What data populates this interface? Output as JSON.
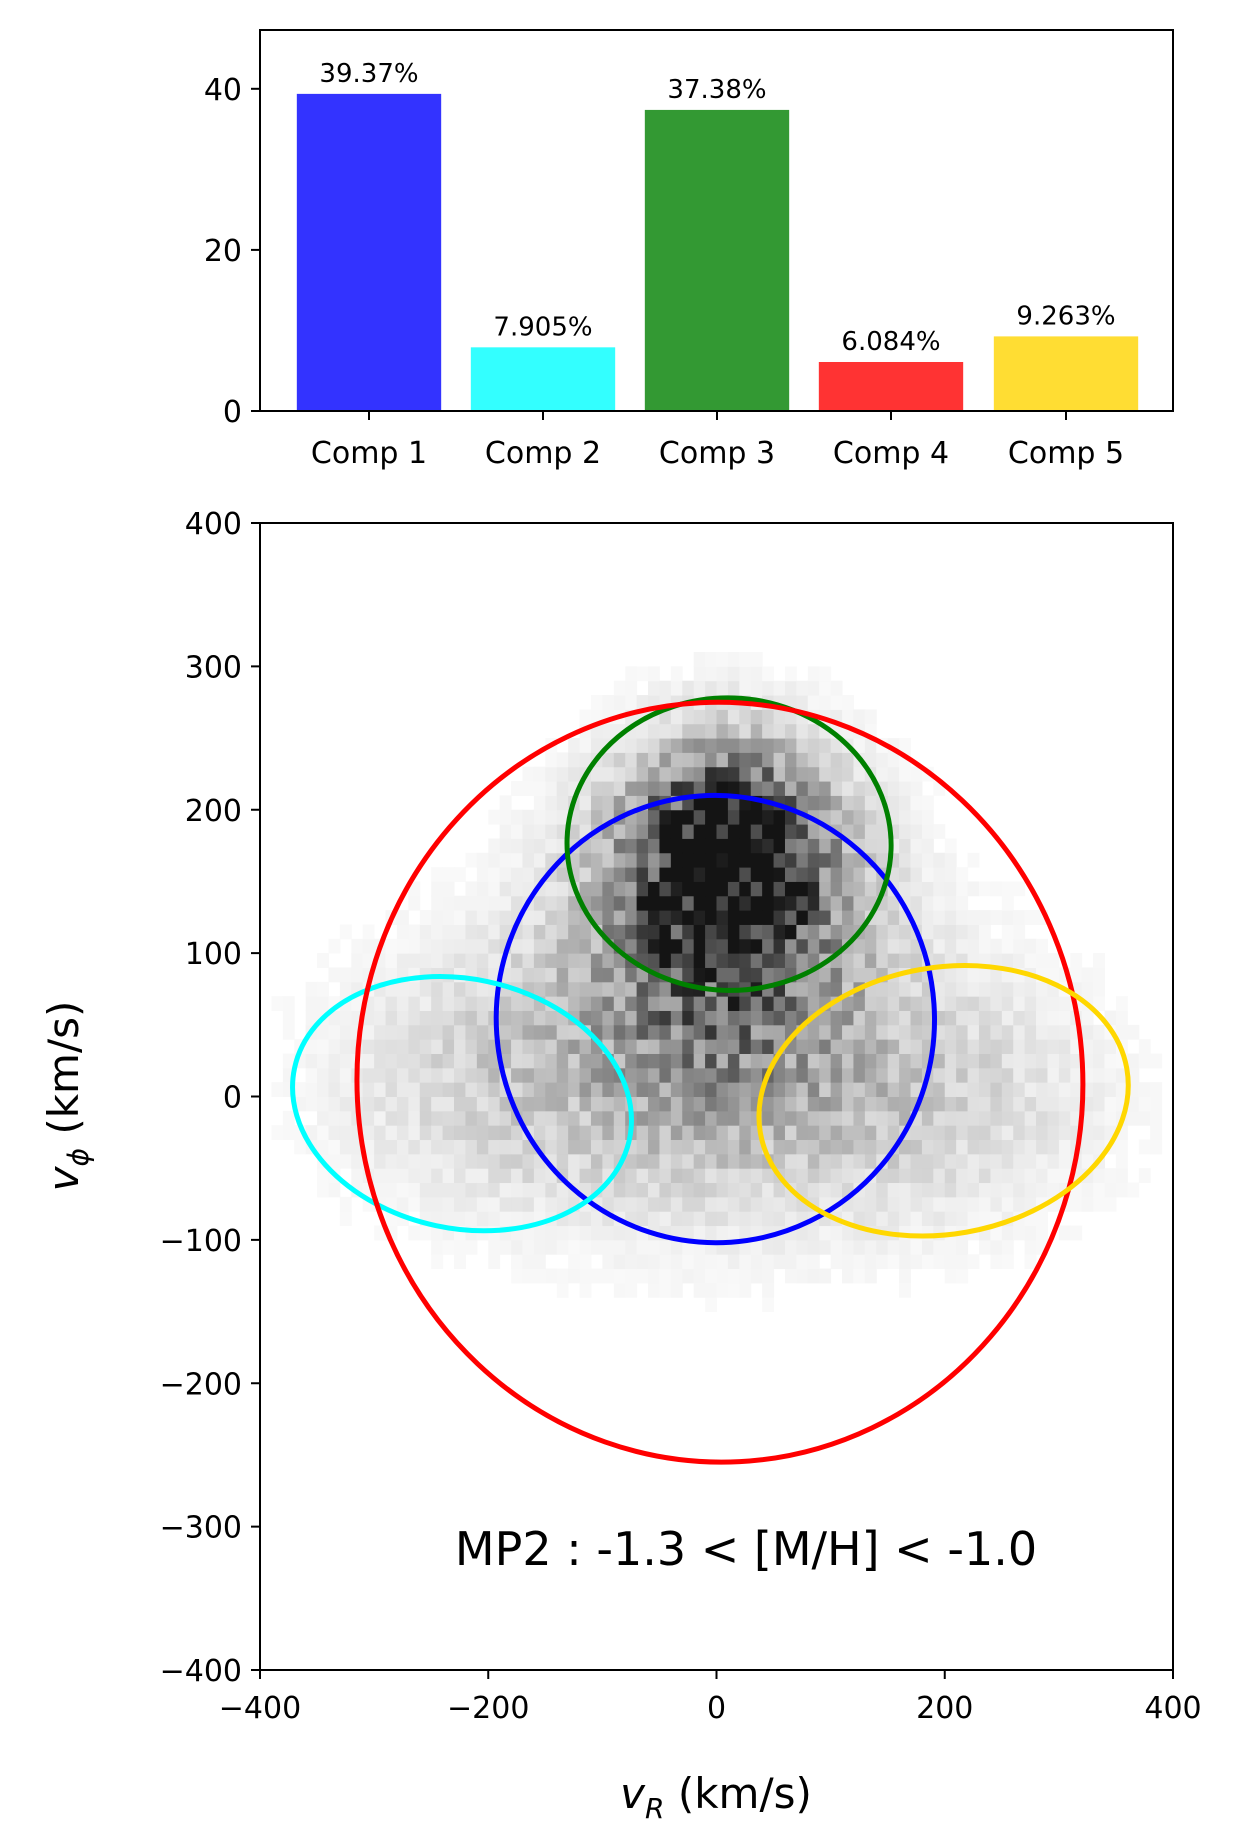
{
  "chart_data": [
    {
      "type": "bar",
      "categories": [
        "Comp 1",
        "Comp 2",
        "Comp 3",
        "Comp 4",
        "Comp 5"
      ],
      "values": [
        39.37,
        7.905,
        37.38,
        6.084,
        9.263
      ],
      "value_labels": [
        "39.37%",
        "7.905%",
        "37.38%",
        "6.084%",
        "9.263%"
      ],
      "colors": [
        "#3333ff",
        "#33ffff",
        "#339933",
        "#ff3333",
        "#ffdd33"
      ],
      "ylim": [
        0,
        47.3
      ],
      "yticks": [
        0,
        20,
        40
      ],
      "ytick_labels": [
        "0",
        "20",
        "40"
      ],
      "title": "",
      "xlabel": "",
      "ylabel": ""
    },
    {
      "type": "scatter",
      "subtype": "2d-histogram with gaussian-component ellipses",
      "xlabel": "v_R (km/s)",
      "ylabel": "v_ϕ (km/s)",
      "xlim": [
        -400,
        400
      ],
      "ylim": [
        -400,
        400
      ],
      "xticks": [
        -400,
        -200,
        0,
        200,
        400
      ],
      "xtick_labels": [
        "−400",
        "−200",
        "0",
        "200",
        "400"
      ],
      "yticks": [
        -400,
        -300,
        -200,
        -100,
        0,
        100,
        200,
        300,
        400
      ],
      "ytick_labels": [
        "−400",
        "−300",
        "−200",
        "−100",
        "0",
        "100",
        "200",
        "300",
        "400"
      ],
      "annotation": "MP2 : -1.3 < [M/H] < -1.0",
      "colormap": "greys",
      "ellipses": [
        {
          "component": "Comp 1",
          "color": "#0000ff",
          "cx": -1,
          "cy": 54,
          "rx": 192,
          "ry": 156,
          "angle_deg": 4
        },
        {
          "component": "Comp 2",
          "color": "#00ffff",
          "cx": -223,
          "cy": -5,
          "rx": 150,
          "ry": 87,
          "angle_deg": -12
        },
        {
          "component": "Comp 3",
          "color": "#008000",
          "cx": 11,
          "cy": 176,
          "rx": 142,
          "ry": 102,
          "angle_deg": -2
        },
        {
          "component": "Comp 4",
          "color": "#ff0000",
          "cx": 3,
          "cy": 10,
          "rx": 318,
          "ry": 265,
          "angle_deg": 3
        },
        {
          "component": "Comp 5",
          "color": "#ffd700",
          "cx": 199,
          "cy": -3,
          "rx": 163,
          "ry": 93,
          "angle_deg": 10
        }
      ],
      "density_blobs": [
        {
          "cx": 5,
          "cy": 165,
          "sx": 58,
          "sy": 48,
          "w": 1.0
        },
        {
          "cx": 0,
          "cy": 95,
          "sx": 85,
          "sy": 75,
          "w": 0.45
        },
        {
          "cx": -10,
          "cy": 20,
          "sx": 150,
          "sy": 75,
          "w": 0.22
        },
        {
          "cx": -200,
          "cy": 5,
          "sx": 95,
          "sy": 55,
          "w": 0.12
        },
        {
          "cx": 190,
          "cy": -10,
          "sx": 100,
          "sy": 55,
          "w": 0.12
        }
      ]
    }
  ]
}
